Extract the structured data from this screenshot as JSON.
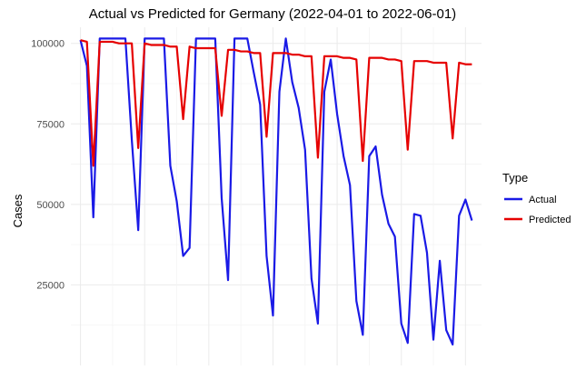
{
  "chart_data": {
    "type": "line",
    "title": "Actual vs Predicted for Germany  (2022-04-01 to 2022-06-01)",
    "xlabel": "",
    "ylabel": "Cases",
    "y_ticks": [
      25000,
      50000,
      75000,
      100000
    ],
    "y_tick_labels": [
      "25000",
      "50000",
      "75000",
      "100000"
    ],
    "ylim": [
      0,
      105000
    ],
    "xlim": [
      -1.5,
      62.5
    ],
    "x_ticks_shown": false,
    "grid": true,
    "legend": {
      "title": "Type",
      "placement": "right"
    },
    "x": [
      0,
      1,
      2,
      3,
      4,
      5,
      6,
      7,
      8,
      9,
      10,
      11,
      12,
      13,
      14,
      15,
      16,
      17,
      18,
      19,
      20,
      21,
      22,
      23,
      24,
      25,
      26,
      27,
      28,
      29,
      30,
      31,
      32,
      33,
      34,
      35,
      36,
      37,
      38,
      39,
      40,
      41,
      42,
      43,
      44,
      45,
      46,
      47,
      48,
      49,
      50,
      51,
      52,
      53,
      54,
      55,
      56,
      57,
      58,
      59,
      60,
      61
    ],
    "series": [
      {
        "name": "Actual",
        "color": "#1a1ae6",
        "values": [
          101000,
          93000,
          46000,
          101500,
          101500,
          101500,
          101500,
          101500,
          70000,
          42000,
          101500,
          101500,
          101500,
          101500,
          62000,
          51000,
          34000,
          36500,
          101500,
          101500,
          101500,
          101500,
          52000,
          26500,
          101500,
          101500,
          101500,
          91000,
          81000,
          34000,
          15500,
          85000,
          101500,
          88000,
          80000,
          67000,
          27000,
          13000,
          85000,
          95000,
          78000,
          65000,
          56000,
          20000,
          9500,
          65000,
          68000,
          53000,
          44000,
          40000,
          13000,
          7000,
          47000,
          46500,
          35000,
          8000,
          32500,
          11000,
          6500,
          46500,
          51500,
          45000
        ]
      },
      {
        "name": "Predicted",
        "color": "#e60000",
        "values": [
          101000,
          100500,
          62000,
          100500,
          100500,
          100500,
          100000,
          100000,
          100000,
          67500,
          100000,
          99500,
          99500,
          99500,
          99000,
          99000,
          76500,
          99000,
          98500,
          98500,
          98500,
          98500,
          77500,
          98000,
          98000,
          97500,
          97500,
          97000,
          97000,
          71000,
          97000,
          97000,
          97000,
          96500,
          96500,
          96000,
          96000,
          64500,
          96000,
          96000,
          96000,
          95500,
          95500,
          95000,
          63500,
          95500,
          95500,
          95500,
          95000,
          95000,
          94500,
          67000,
          94500,
          94500,
          94500,
          94000,
          94000,
          94000,
          70500,
          94000,
          93500,
          93500
        ]
      }
    ]
  }
}
